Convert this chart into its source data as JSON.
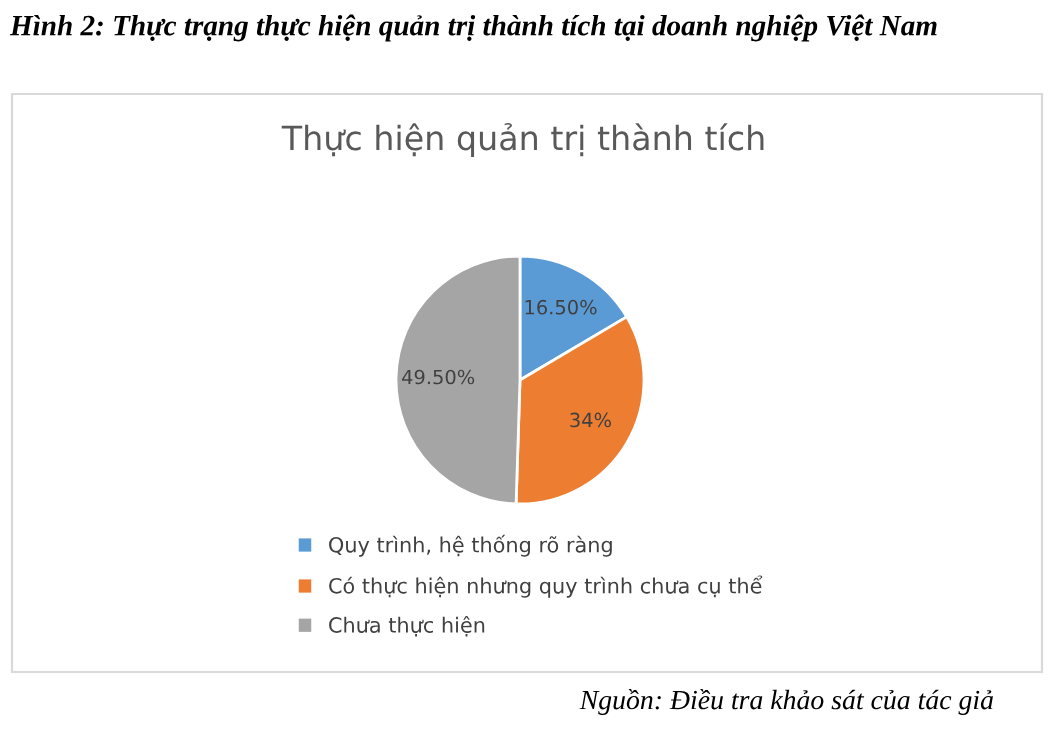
{
  "chart_data": {
    "type": "pie",
    "title": "Hình 2: Thực trạng thực hiện quản trị thành tích tại doanh nghiệp Việt Nam",
    "subtitle": "Thực hiện quản trị thành tích",
    "categories": [
      "Quy trình, hệ thống rõ ràng",
      "Có thực hiện nhưng quy trình chưa cụ thể",
      "Chưa thực hiện"
    ],
    "values": [
      16.5,
      34,
      49.5
    ],
    "colors": [
      "#5b9bd5",
      "#ed7d31",
      "#a5a5a5"
    ],
    "value_labels": [
      "16.50%",
      "34%",
      "49.50%"
    ],
    "legend": "bottom left",
    "annotations": [
      "Nguồn: Điều tra khảo sát của tác giả"
    ]
  }
}
